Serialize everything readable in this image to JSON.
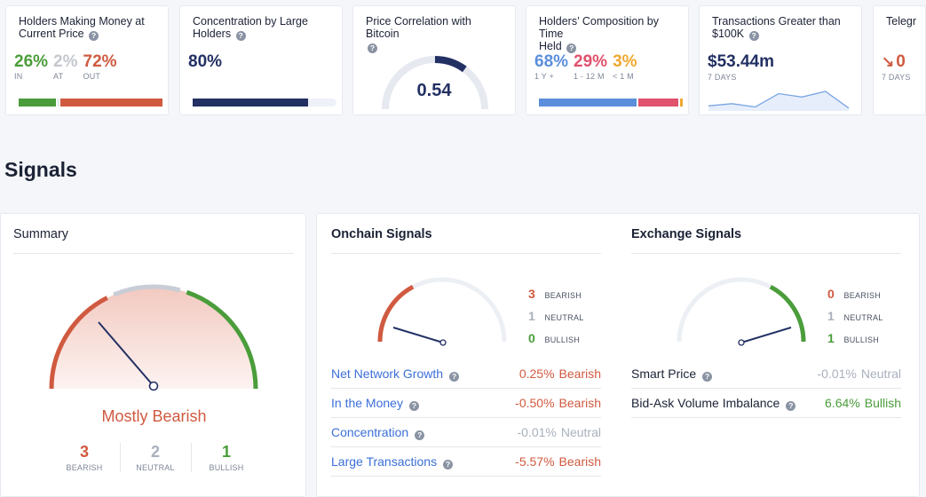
{
  "cards": {
    "holders_money": {
      "title_line1": "Holders Making Money at",
      "title_line2": "Current Price",
      "in_value": "26%",
      "in_label": "IN",
      "at_value": "2%",
      "at_label": "AT",
      "out_value": "72%",
      "out_label": "OUT",
      "bar_fractions": [
        0.26,
        0.02,
        0.72
      ]
    },
    "concentration": {
      "title_line1": "Concentration by Large",
      "title_line2": "Holders",
      "value": "80%",
      "bar_fraction": 0.8
    },
    "correlation": {
      "title": "Price Correlation with Bitcoin",
      "value": "0.54",
      "fraction": 0.54
    },
    "composition": {
      "title_line1": "Holders’ Composition by Time",
      "title_line2": "Held",
      "a_value": "68%",
      "a_label": "1 Y +",
      "b_value": "29%",
      "b_label": "1 - 12 M",
      "c_value": "3%",
      "c_label": "< 1 M",
      "bar_fractions": [
        0.68,
        0.29,
        0.03
      ]
    },
    "transactions": {
      "title_line1": "Transactions Greater than",
      "title_line2": "$100K",
      "value": "$53.44m",
      "period": "7 DAYS",
      "sparkline": [
        3,
        5,
        2,
        14,
        11,
        16,
        1
      ]
    },
    "telegram": {
      "title": "Telegr",
      "value": "0",
      "period": "7 DAYS"
    }
  },
  "signals_title": "Signals",
  "summary": {
    "title": "Summary",
    "verdict": "Mostly Bearish",
    "bearish_count": "3",
    "bearish_label": "BEARISH",
    "neutral_count": "2",
    "neutral_label": "NEUTRAL",
    "bullish_count": "1",
    "bullish_label": "BULLISH"
  },
  "onchain": {
    "title": "Onchain Signals",
    "bearish_count": "3",
    "bearish_label": "BEARISH",
    "neutral_count": "1",
    "neutral_label": "NEUTRAL",
    "bullish_count": "0",
    "bullish_label": "BULLISH",
    "rows": [
      {
        "name": "Net Network Growth",
        "value": "0.25%",
        "verdict": "Bearish"
      },
      {
        "name": "In the Money",
        "value": "-0.50%",
        "verdict": "Bearish"
      },
      {
        "name": "Concentration",
        "value": "-0.01%",
        "verdict": "Neutral"
      },
      {
        "name": "Large Transactions",
        "value": "-5.57%",
        "verdict": "Bearish"
      }
    ]
  },
  "exchange": {
    "title": "Exchange Signals",
    "bearish_count": "0",
    "bearish_label": "BEARISH",
    "neutral_count": "1",
    "neutral_label": "NEUTRAL",
    "bullish_count": "1",
    "bullish_label": "BULLISH",
    "rows": [
      {
        "name": "Smart Price",
        "value": "-0.01%",
        "verdict": "Neutral"
      },
      {
        "name": "Bid-Ask Volume Imbalance",
        "value": "6.64%",
        "verdict": "Bullish"
      }
    ]
  },
  "colors": {
    "bearish": "#d05a40",
    "neutral": "#a9b0bd",
    "bullish": "#4a9d3a",
    "navy": "#233063",
    "blue": "#5b8fdc",
    "pink": "#e0526d",
    "orange": "#f0a830"
  }
}
